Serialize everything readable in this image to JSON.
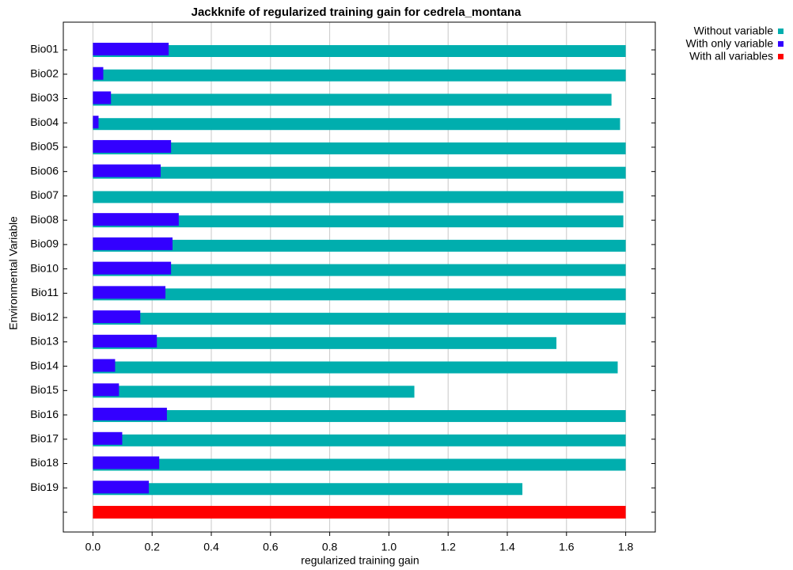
{
  "chart_data": {
    "type": "hbar",
    "title": "Jackknife of regularized training gain for cedrela_montana",
    "x_label": "regularized training gain",
    "y_label": "Environmental Variable",
    "categories": [
      "Bio01",
      "Bio02",
      "Bio03",
      "Bio04",
      "Bio05",
      "Bio06",
      "Bio07",
      "Bio08",
      "Bio09",
      "Bio10",
      "Bio11",
      "Bio12",
      "Bio13",
      "Bio14",
      "Bio15",
      "Bio16",
      "Bio17",
      "Bio18",
      "Bio19",
      null
    ],
    "series": [
      {
        "name": "Without variable",
        "color": "#00aeae",
        "values": [
          1.8,
          1.8,
          1.752,
          1.781,
          1.8,
          1.8,
          1.792,
          1.792,
          1.8,
          1.8,
          1.8,
          1.8,
          1.566,
          1.773,
          1.086,
          1.8,
          1.8,
          1.8,
          1.451,
          null
        ]
      },
      {
        "name": "With only variable",
        "color": "#3300ff",
        "values": [
          0.256,
          0.035,
          0.061,
          0.019,
          0.264,
          0.229,
          0,
          0.29,
          0.269,
          0.264,
          0.245,
          0.16,
          0.216,
          0.075,
          0.088,
          0.25,
          0.099,
          0.224,
          0.189,
          null
        ]
      },
      {
        "name": "With all variables",
        "color": "#ff0000",
        "values": [
          null,
          null,
          null,
          null,
          null,
          null,
          null,
          null,
          null,
          null,
          null,
          null,
          null,
          null,
          null,
          null,
          null,
          null,
          null,
          1.8
        ]
      }
    ],
    "xlim": [
      -0.1,
      1.9
    ],
    "xticks": [
      {
        "value": 0,
        "label": "0.0"
      },
      0.2,
      0.4,
      0.6,
      0.8,
      {
        "value": 1,
        "label": "1.0"
      },
      1.2,
      1.4,
      1.6,
      1.8
    ],
    "grid": true,
    "legend": "top-right"
  }
}
